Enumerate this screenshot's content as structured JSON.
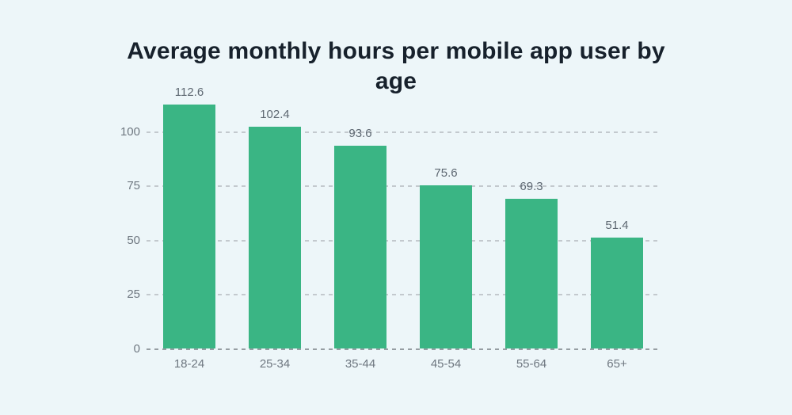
{
  "page": {
    "background_color": "#edf6f9"
  },
  "chart_data": {
    "type": "bar",
    "title": "Average monthly hours per mobile app user by age",
    "categories": [
      "18-24",
      "25-34",
      "35-44",
      "45-54",
      "55-64",
      "65+"
    ],
    "values": [
      112.6,
      102.4,
      93.6,
      75.6,
      69.3,
      51.4
    ],
    "value_labels": [
      "112.6",
      "102.4",
      "93.6",
      "75.6",
      "69.3",
      "51.4"
    ],
    "xlabel": "",
    "ylabel": "",
    "yticks": [
      0,
      25,
      50,
      75,
      100
    ],
    "ytick_labels": [
      "0",
      "25",
      "50",
      "75",
      "100"
    ],
    "ylim": [
      0,
      115
    ],
    "grid": "horizontal-dashed",
    "legend": "none",
    "bar_color": "#3ab584",
    "grid_color": "#c3c9ce",
    "axis_text_color": "#6e7780",
    "value_label_color": "#5d6771",
    "title_color": "#17212c"
  }
}
